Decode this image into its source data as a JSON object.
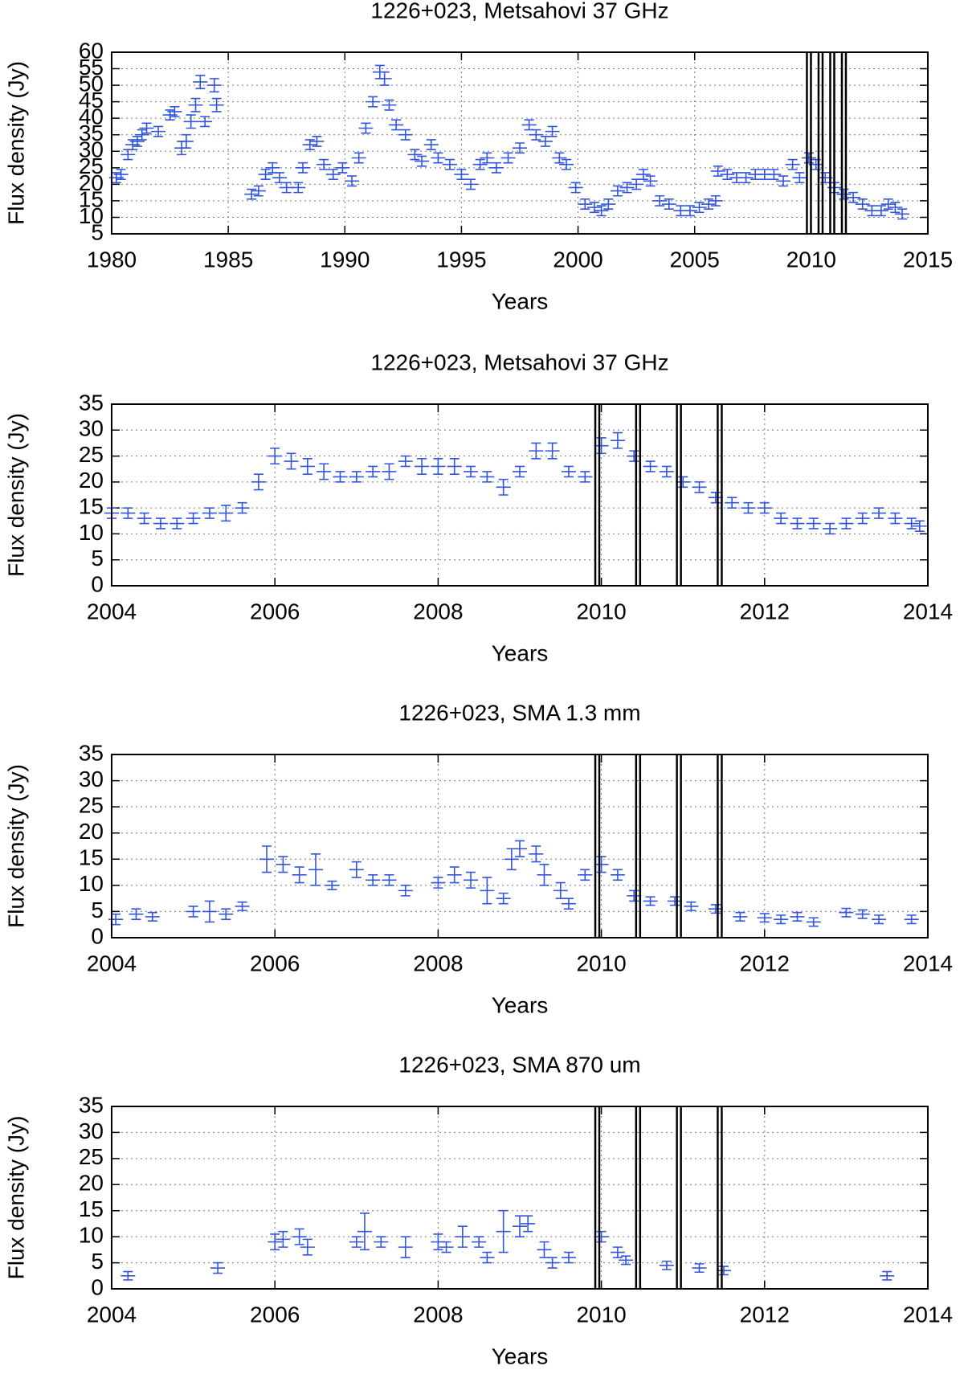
{
  "chart_data": [
    {
      "type": "scatter",
      "title": "1226+023, Metsahovi 37 GHz",
      "xlabel": "Years",
      "ylabel": "Flux density (Jy)",
      "color": "#3355dd",
      "grid": true,
      "xlim": [
        1980,
        2015
      ],
      "xticks": [
        1980,
        1985,
        1990,
        1995,
        2000,
        2005,
        2010,
        2015
      ],
      "ylim": [
        5,
        60
      ],
      "yticks": [
        5,
        10,
        15,
        20,
        25,
        30,
        35,
        40,
        45,
        50,
        55,
        60
      ],
      "vlines": [
        2009.9,
        2010.4,
        2010.9,
        2011.4
      ],
      "x": [
        1980.2,
        1980.4,
        1980.7,
        1980.9,
        1981.1,
        1981.3,
        1981.5,
        1982,
        1982.5,
        1982.7,
        1983,
        1983.2,
        1983.4,
        1983.6,
        1983.8,
        1984,
        1984.4,
        1984.5,
        1986,
        1986.3,
        1986.6,
        1986.9,
        1987.2,
        1987.5,
        1988,
        1988.2,
        1988.5,
        1988.8,
        1989.1,
        1989.5,
        1989.9,
        1990.3,
        1990.6,
        1990.9,
        1991.2,
        1991.5,
        1991.7,
        1991.9,
        1992.2,
        1992.6,
        1993,
        1993.3,
        1993.7,
        1994,
        1994.5,
        1995,
        1995.4,
        1995.8,
        1996.1,
        1996.5,
        1997,
        1997.5,
        1997.9,
        1998.2,
        1998.6,
        1998.9,
        1999.2,
        1999.5,
        1999.9,
        2000.3,
        2000.7,
        2001,
        2001.3,
        2001.7,
        2002.1,
        2002.5,
        2002.8,
        2003.1,
        2003.5,
        2003.9,
        2004.4,
        2004.8,
        2005.2,
        2005.6,
        2005.9,
        2006,
        2006.4,
        2006.8,
        2007.2,
        2007.6,
        2008,
        2008.4,
        2008.8,
        2009.2,
        2009.5,
        2009.9,
        2010.2,
        2010.6,
        2011,
        2011.4,
        2011.8,
        2012.2,
        2012.6,
        2013,
        2013.3,
        2013.6,
        2013.9
      ],
      "values": [
        22,
        23,
        29,
        32,
        33,
        35,
        37,
        36,
        41,
        42,
        31,
        33,
        39,
        44,
        51,
        39,
        50,
        44,
        17,
        18,
        23,
        25,
        22,
        19,
        19,
        25,
        32,
        33,
        26,
        23,
        25,
        21,
        28,
        37,
        45,
        54,
        52,
        44,
        38,
        35,
        29,
        27,
        32,
        28,
        26,
        23,
        20,
        26,
        28,
        25,
        28,
        31,
        38,
        35,
        33,
        36,
        28,
        26,
        19,
        14,
        13,
        12,
        14,
        18,
        19,
        20,
        23,
        21,
        15,
        14,
        12,
        12,
        13,
        14,
        15,
        24,
        23,
        22,
        22,
        23,
        23,
        23,
        21,
        26,
        22,
        28,
        26,
        22,
        19,
        17,
        16,
        14,
        12,
        12,
        14,
        13,
        11
      ],
      "errors": [
        1.5,
        1.5,
        1.5,
        1.5,
        1.5,
        1.5,
        1.5,
        1.5,
        1.5,
        1.5,
        2,
        2,
        2,
        2,
        2,
        1.5,
        2,
        2,
        1.5,
        1.5,
        1.5,
        1.5,
        1.5,
        1.5,
        1.5,
        1.5,
        1.5,
        1.5,
        1.5,
        1.5,
        1.5,
        1.5,
        1.5,
        1.5,
        1.5,
        2,
        2,
        1.5,
        1.5,
        1.5,
        1.5,
        1.5,
        1.5,
        1.5,
        1.5,
        1.5,
        1.5,
        1.5,
        1.5,
        1.5,
        1.5,
        1.5,
        1.5,
        1.5,
        1.5,
        1.5,
        1.5,
        1.5,
        1.5,
        1.5,
        1.5,
        1.5,
        1.5,
        1.5,
        1.5,
        1.5,
        1.5,
        1.5,
        1.5,
        1.5,
        1.5,
        1.5,
        1.5,
        1.5,
        1.5,
        1.5,
        1.5,
        1.5,
        1.5,
        1.5,
        1.5,
        1.5,
        1.5,
        1.5,
        1.5,
        1.5,
        1.5,
        1.5,
        1.5,
        1.5,
        1.5,
        1.5,
        1.5,
        1.5,
        1.5,
        1.5,
        1.5
      ]
    },
    {
      "type": "scatter",
      "title": "1226+023, Metsahovi 37 GHz",
      "xlabel": "Years",
      "ylabel": "Flux density (Jy)",
      "color": "#3355dd",
      "grid": true,
      "xlim": [
        2004,
        2014
      ],
      "xticks": [
        2004,
        2006,
        2008,
        2010,
        2012,
        2014
      ],
      "ylim": [
        0,
        35
      ],
      "yticks": [
        0,
        5,
        10,
        15,
        20,
        25,
        30,
        35
      ],
      "vlines": [
        2009.95,
        2010.45,
        2010.95,
        2011.45
      ],
      "x": [
        2004.0,
        2004.2,
        2004.4,
        2004.6,
        2004.8,
        2005,
        2005.2,
        2005.4,
        2005.6,
        2005.8,
        2006,
        2006.2,
        2006.4,
        2006.6,
        2006.8,
        2007,
        2007.2,
        2007.4,
        2007.6,
        2007.8,
        2008,
        2008.2,
        2008.4,
        2008.6,
        2008.8,
        2009,
        2009.2,
        2009.4,
        2009.6,
        2009.8,
        2010,
        2010.2,
        2010.4,
        2010.6,
        2010.8,
        2011,
        2011.2,
        2011.4,
        2011.6,
        2011.8,
        2012,
        2012.2,
        2012.4,
        2012.6,
        2012.8,
        2013,
        2013.2,
        2013.4,
        2013.6,
        2013.8,
        2013.9
      ],
      "values": [
        14,
        14,
        13,
        12,
        12,
        13,
        14,
        14,
        15,
        20,
        25,
        24,
        23,
        22,
        21,
        21,
        22,
        22,
        24,
        23,
        23,
        23,
        22,
        21,
        19,
        22,
        26,
        26,
        22,
        21,
        27,
        28,
        25,
        23,
        22,
        20,
        19,
        17,
        16,
        15,
        15,
        13,
        12,
        12,
        11,
        12,
        13,
        14,
        13,
        12,
        11.5
      ],
      "errors": [
        1,
        1,
        1,
        1,
        1,
        1,
        1,
        1.5,
        1,
        1.5,
        1.5,
        1.5,
        1.5,
        1.5,
        1,
        1,
        1,
        1.5,
        1,
        1.5,
        1.5,
        1.5,
        1,
        1,
        1.5,
        1,
        1.5,
        1.5,
        1,
        1,
        1.5,
        1.5,
        1,
        1,
        1,
        1,
        1,
        1,
        1,
        1,
        1,
        1,
        1,
        1,
        1,
        1,
        1,
        1,
        1,
        1,
        1
      ]
    },
    {
      "type": "scatter",
      "title": "1226+023, SMA 1.3 mm",
      "xlabel": "Years",
      "ylabel": "Flux density (Jy)",
      "color": "#3355dd",
      "grid": true,
      "xlim": [
        2004,
        2014
      ],
      "xticks": [
        2004,
        2006,
        2008,
        2010,
        2012,
        2014
      ],
      "ylim": [
        0,
        35
      ],
      "yticks": [
        0,
        5,
        10,
        15,
        20,
        25,
        30,
        35
      ],
      "vlines": [
        2009.95,
        2010.45,
        2010.95,
        2011.45
      ],
      "x": [
        2004.05,
        2004.3,
        2004.5,
        2005,
        2005.2,
        2005.4,
        2005.6,
        2005.9,
        2006.1,
        2006.3,
        2006.5,
        2006.7,
        2007,
        2007.2,
        2007.4,
        2007.6,
        2008,
        2008.2,
        2008.4,
        2008.6,
        2008.8,
        2008.9,
        2009,
        2009.2,
        2009.3,
        2009.5,
        2009.6,
        2009.8,
        2010,
        2010.2,
        2010.4,
        2010.6,
        2010.9,
        2011.1,
        2011.4,
        2011.7,
        2012,
        2012.2,
        2012.4,
        2012.6,
        2013,
        2013.2,
        2013.4,
        2013.8
      ],
      "values": [
        3.5,
        4.5,
        4,
        5,
        5,
        4.5,
        6,
        15,
        14,
        12,
        13,
        10,
        13,
        11,
        11,
        9,
        10.5,
        12,
        11,
        9,
        7.5,
        15,
        17,
        16,
        12,
        9,
        6.5,
        12,
        14,
        12,
        8,
        7,
        7,
        6,
        5.5,
        4,
        3.8,
        3.5,
        4,
        3,
        4.8,
        4.5,
        3.5,
        3.5
      ],
      "errors": [
        1,
        1,
        0.8,
        1,
        2,
        1,
        0.8,
        2.5,
        1.5,
        1.5,
        3,
        0.8,
        1.5,
        1,
        1,
        1,
        1,
        1.5,
        1.5,
        2.5,
        1,
        2,
        1.5,
        1.5,
        2,
        1.5,
        1,
        1,
        1.5,
        1,
        1,
        0.8,
        0.8,
        0.8,
        0.8,
        0.8,
        0.8,
        0.8,
        0.8,
        0.8,
        0.8,
        0.8,
        0.8,
        0.8
      ]
    },
    {
      "type": "scatter",
      "title": "1226+023, SMA 870 um",
      "xlabel": "Years",
      "ylabel": "Flux density (Jy)",
      "color": "#3355dd",
      "grid": true,
      "xlim": [
        2004,
        2014
      ],
      "xticks": [
        2004,
        2006,
        2008,
        2010,
        2012,
        2014
      ],
      "ylim": [
        0,
        35
      ],
      "yticks": [
        0,
        5,
        10,
        15,
        20,
        25,
        30,
        35
      ],
      "vlines": [
        2009.95,
        2010.45,
        2010.95,
        2011.45
      ],
      "x": [
        2004.2,
        2005.3,
        2006,
        2006.1,
        2006.3,
        2006.4,
        2007,
        2007.1,
        2007.3,
        2007.6,
        2008,
        2008.1,
        2008.3,
        2008.5,
        2008.6,
        2008.8,
        2009,
        2009.1,
        2009.3,
        2009.4,
        2009.6,
        2010,
        2010.2,
        2010.3,
        2010.8,
        2011.2,
        2011.5,
        2013.5
      ],
      "values": [
        2.5,
        4,
        9,
        9.5,
        10,
        8,
        9,
        11,
        9,
        8,
        9,
        8,
        10,
        9,
        6,
        11,
        12,
        12.5,
        7.5,
        5,
        6,
        10,
        7,
        5.5,
        4.5,
        4,
        3.5,
        2.5
      ],
      "errors": [
        0.8,
        1,
        1.5,
        1.5,
        1.5,
        1.5,
        1,
        3.5,
        1,
        2,
        1.5,
        1,
        2,
        1,
        1,
        4,
        2,
        1.5,
        1.5,
        1,
        1,
        1,
        1,
        0.8,
        0.8,
        0.8,
        0.8,
        0.8
      ]
    }
  ]
}
